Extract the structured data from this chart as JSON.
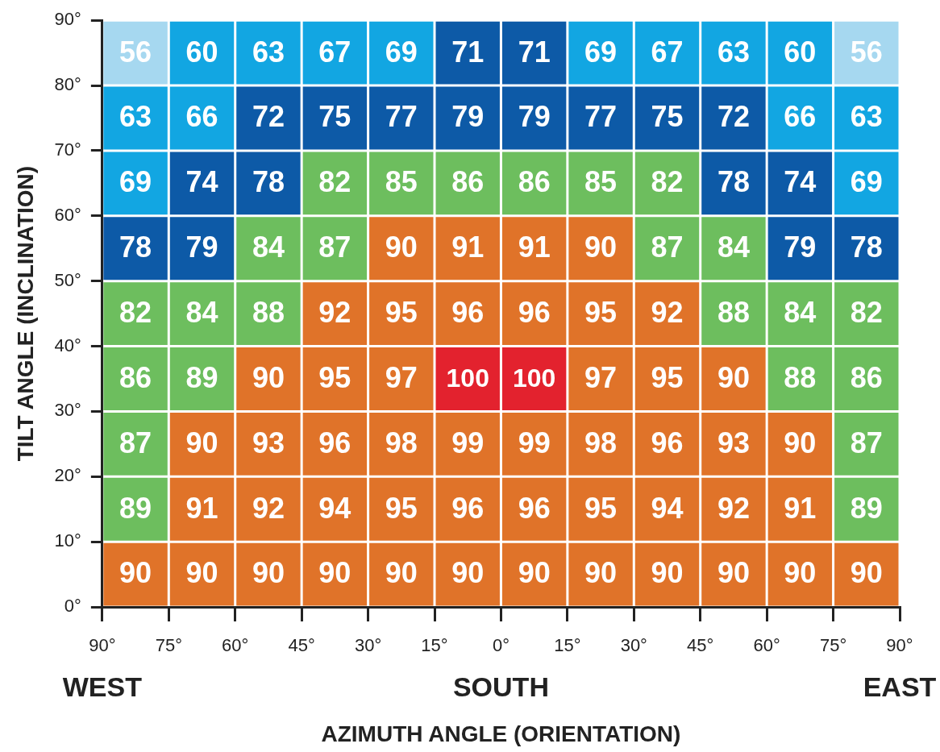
{
  "chart_data": {
    "type": "heatmap",
    "xlabel": "AZIMUTH ANGLE (ORIENTATION)",
    "ylabel": "TILT ANGLE (INCLINATION)",
    "xlim": [
      -90,
      90
    ],
    "xticks": [
      {
        "value": -90,
        "label": "90°"
      },
      {
        "value": -75,
        "label": "75°"
      },
      {
        "value": -60,
        "label": "60°"
      },
      {
        "value": -45,
        "label": "45°"
      },
      {
        "value": -30,
        "label": "30°"
      },
      {
        "value": -15,
        "label": "15°"
      },
      {
        "value": 0,
        "label": "0°"
      },
      {
        "value": 15,
        "label": "15°"
      },
      {
        "value": 30,
        "label": "30°"
      },
      {
        "value": 45,
        "label": "45°"
      },
      {
        "value": 60,
        "label": "60°"
      },
      {
        "value": 75,
        "label": "75°"
      },
      {
        "value": 90,
        "label": "90°"
      }
    ],
    "ylim": [
      0,
      90
    ],
    "yticks": [
      {
        "value": 0,
        "label": "0°"
      },
      {
        "value": 10,
        "label": "10°"
      },
      {
        "value": 20,
        "label": "20°"
      },
      {
        "value": 30,
        "label": "30°"
      },
      {
        "value": 40,
        "label": "40°"
      },
      {
        "value": 50,
        "label": "50°"
      },
      {
        "value": 60,
        "label": "60°"
      },
      {
        "value": 70,
        "label": "70°"
      },
      {
        "value": 80,
        "label": "80°"
      },
      {
        "value": 90,
        "label": "90°"
      }
    ],
    "cells": [
      [
        56,
        60,
        63,
        67,
        69,
        71,
        71,
        69,
        67,
        63,
        60,
        56
      ],
      [
        63,
        66,
        72,
        75,
        77,
        79,
        79,
        77,
        75,
        72,
        66,
        63
      ],
      [
        69,
        74,
        78,
        82,
        85,
        86,
        86,
        85,
        82,
        78,
        74,
        69
      ],
      [
        78,
        79,
        84,
        87,
        90,
        91,
        91,
        90,
        87,
        84,
        79,
        78
      ],
      [
        82,
        84,
        88,
        92,
        95,
        96,
        96,
        95,
        92,
        88,
        84,
        82
      ],
      [
        86,
        89,
        90,
        95,
        97,
        100,
        100,
        97,
        95,
        90,
        88,
        86
      ],
      [
        87,
        90,
        93,
        96,
        98,
        99,
        99,
        98,
        96,
        93,
        90,
        87
      ],
      [
        89,
        91,
        92,
        94,
        95,
        96,
        96,
        95,
        94,
        92,
        91,
        89
      ],
      [
        90,
        90,
        90,
        90,
        90,
        90,
        90,
        90,
        90,
        90,
        90,
        90
      ]
    ],
    "colors": [
      [
        "#a6d8f0",
        "#12a6e2",
        "#12a6e2",
        "#12a6e2",
        "#12a6e2",
        "#0d5aa7",
        "#0d5aa7",
        "#12a6e2",
        "#12a6e2",
        "#12a6e2",
        "#12a6e2",
        "#a6d8f0"
      ],
      [
        "#12a6e2",
        "#12a6e2",
        "#0d5aa7",
        "#0d5aa7",
        "#0d5aa7",
        "#0d5aa7",
        "#0d5aa7",
        "#0d5aa7",
        "#0d5aa7",
        "#0d5aa7",
        "#12a6e2",
        "#12a6e2"
      ],
      [
        "#12a6e2",
        "#0d5aa7",
        "#0d5aa7",
        "#6dbe5e",
        "#6dbe5e",
        "#6dbe5e",
        "#6dbe5e",
        "#6dbe5e",
        "#6dbe5e",
        "#0d5aa7",
        "#0d5aa7",
        "#12a6e2"
      ],
      [
        "#0d5aa7",
        "#0d5aa7",
        "#6dbe5e",
        "#6dbe5e",
        "#e07329",
        "#e07329",
        "#e07329",
        "#e07329",
        "#6dbe5e",
        "#6dbe5e",
        "#0d5aa7",
        "#0d5aa7"
      ],
      [
        "#6dbe5e",
        "#6dbe5e",
        "#6dbe5e",
        "#e07329",
        "#e07329",
        "#e07329",
        "#e07329",
        "#e07329",
        "#e07329",
        "#6dbe5e",
        "#6dbe5e",
        "#6dbe5e"
      ],
      [
        "#6dbe5e",
        "#6dbe5e",
        "#e07329",
        "#e07329",
        "#e07329",
        "#e3222e",
        "#e3222e",
        "#e07329",
        "#e07329",
        "#e07329",
        "#6dbe5e",
        "#6dbe5e"
      ],
      [
        "#6dbe5e",
        "#e07329",
        "#e07329",
        "#e07329",
        "#e07329",
        "#e07329",
        "#e07329",
        "#e07329",
        "#e07329",
        "#e07329",
        "#e07329",
        "#6dbe5e"
      ],
      [
        "#6dbe5e",
        "#e07329",
        "#e07329",
        "#e07329",
        "#e07329",
        "#e07329",
        "#e07329",
        "#e07329",
        "#e07329",
        "#e07329",
        "#e07329",
        "#6dbe5e"
      ],
      [
        "#e07329",
        "#e07329",
        "#e07329",
        "#e07329",
        "#e07329",
        "#e07329",
        "#e07329",
        "#e07329",
        "#e07329",
        "#e07329",
        "#e07329",
        "#e07329"
      ]
    ],
    "data_labels": true,
    "annotations": [
      "WEST",
      "SOUTH",
      "EAST"
    ]
  }
}
